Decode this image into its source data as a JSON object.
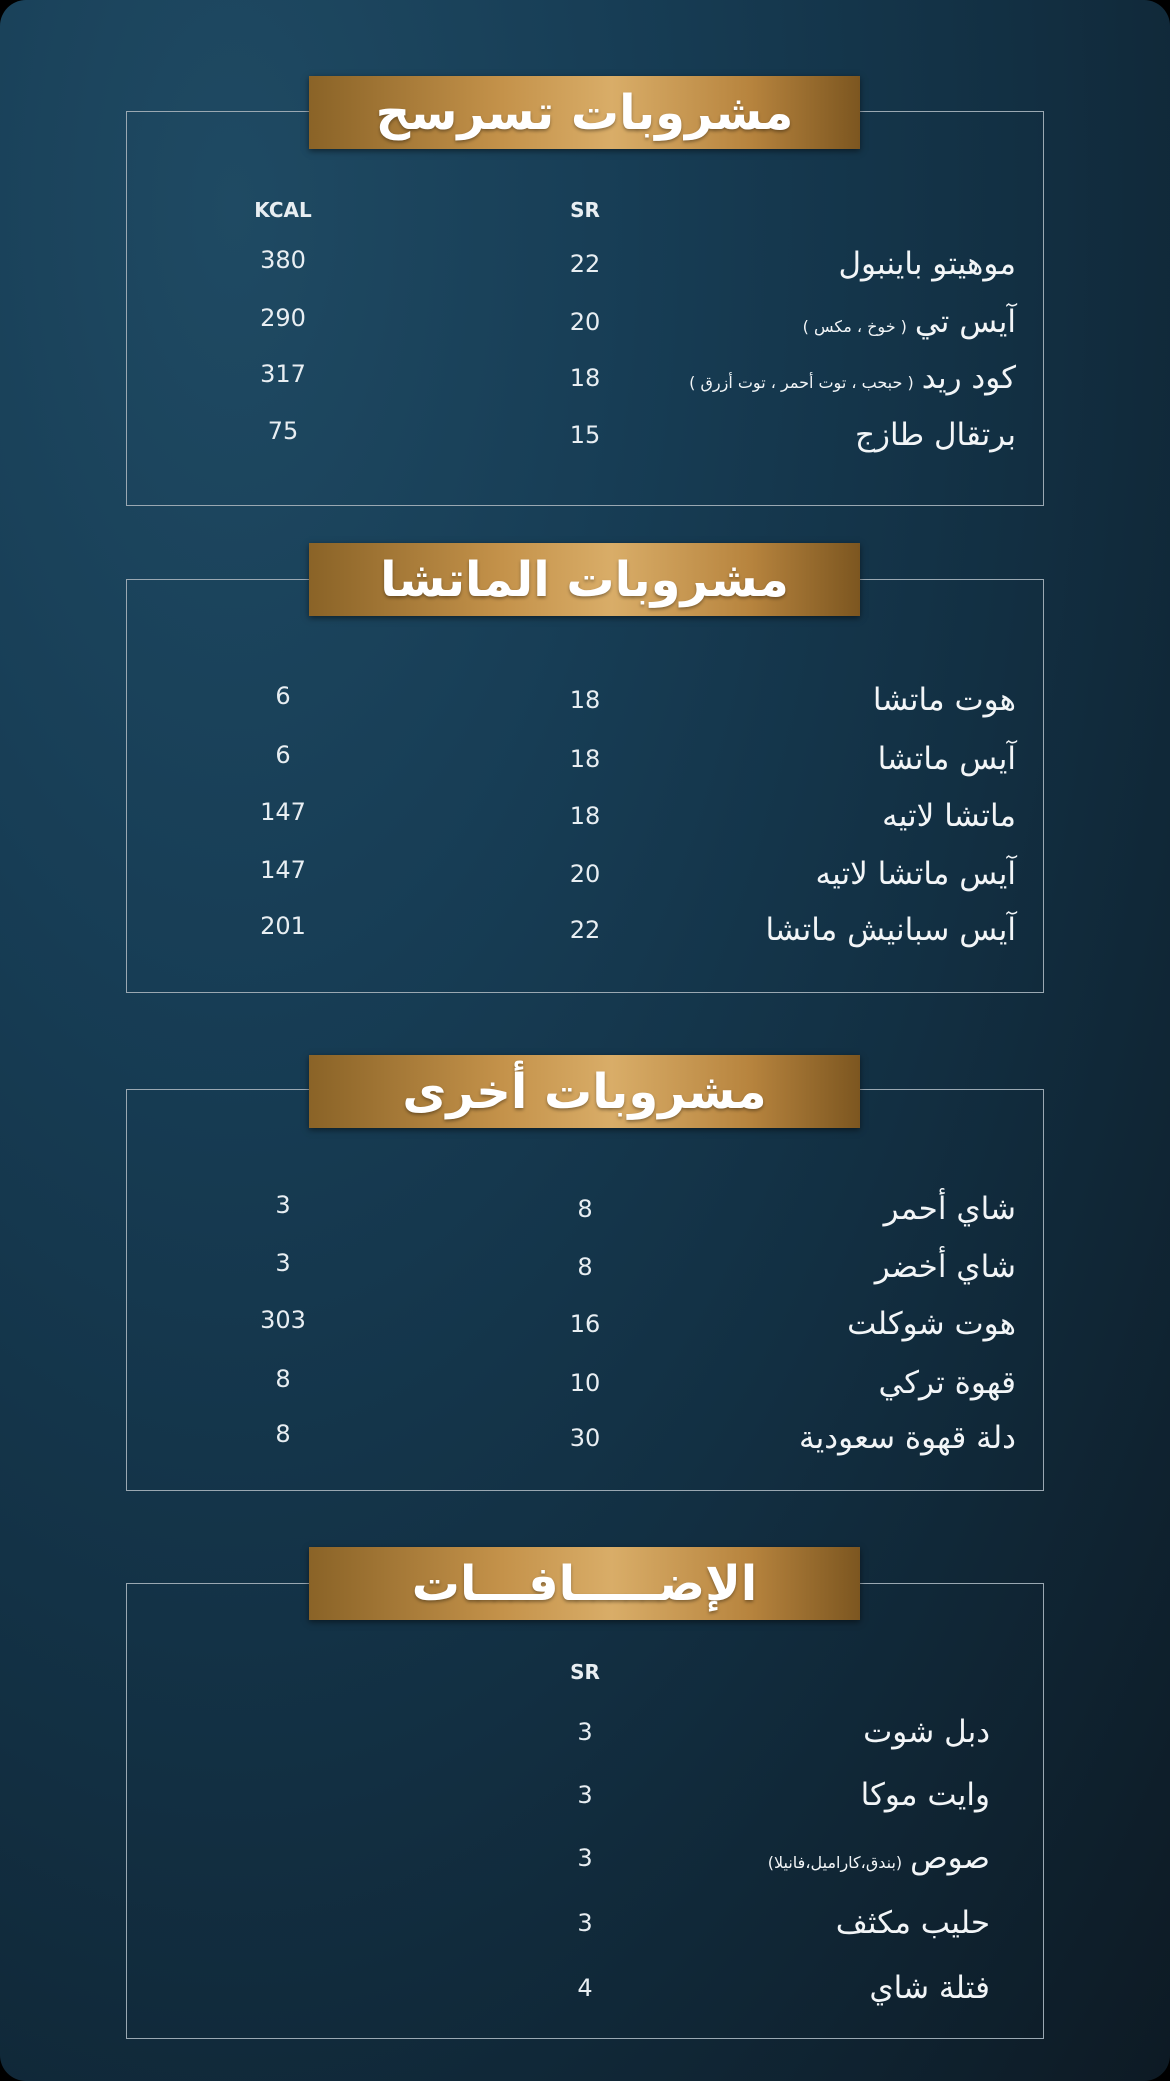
{
  "sections": [
    {
      "title": "مشروبات تسرسح",
      "headers": {
        "sr": "SR",
        "kcal": "KCAL"
      },
      "items": [
        {
          "name": "موهيتو باينبول",
          "note": "",
          "sr": "22",
          "kcal": "380"
        },
        {
          "name": "آيس تي",
          "note": "( خوخ ، مكس )",
          "sr": "20",
          "kcal": "290"
        },
        {
          "name": "كود ريد",
          "note": "( حبحب ، توت أحمر ، توت أزرق )",
          "sr": "18",
          "kcal": "317"
        },
        {
          "name": "برتقال طازج",
          "note": "",
          "sr": "15",
          "kcal": "75"
        }
      ]
    },
    {
      "title": "مشروبات الماتشا",
      "headers": {},
      "items": [
        {
          "name": "هوت ماتشا",
          "note": "",
          "sr": "18",
          "kcal": "6"
        },
        {
          "name": "آيس ماتشا",
          "note": "",
          "sr": "18",
          "kcal": "6"
        },
        {
          "name": "ماتشا لاتيه",
          "note": "",
          "sr": "18",
          "kcal": "147"
        },
        {
          "name": "آيس ماتشا لاتيه",
          "note": "",
          "sr": "20",
          "kcal": "147"
        },
        {
          "name": "آيس سبانيش ماتشا",
          "note": "",
          "sr": "22",
          "kcal": "201"
        }
      ]
    },
    {
      "title": "مشروبات أخرى",
      "headers": {},
      "items": [
        {
          "name": "شاي أحمر",
          "note": "",
          "sr": "8",
          "kcal": "3"
        },
        {
          "name": "شاي أخضر",
          "note": "",
          "sr": "8",
          "kcal": "3"
        },
        {
          "name": "هوت شوكلت",
          "note": "",
          "sr": "16",
          "kcal": "303"
        },
        {
          "name": "قهوة تركي",
          "note": "",
          "sr": "10",
          "kcal": "8"
        },
        {
          "name": "دلة قهوة سعودية",
          "note": "",
          "sr": "30",
          "kcal": "8"
        }
      ]
    },
    {
      "title": "الإضـــــافـــات",
      "headers": {
        "sr": "SR"
      },
      "items": [
        {
          "name": "دبل شوت",
          "note": "",
          "sr": "3"
        },
        {
          "name": "وايت موكا",
          "note": "",
          "sr": "3"
        },
        {
          "name": "صوص",
          "note": "(بندق،كاراميل،فانيلا)",
          "sr": "3"
        },
        {
          "name": "حليب مكثف",
          "note": "",
          "sr": "3"
        },
        {
          "name": "فتلة شاي",
          "note": "",
          "sr": "4"
        }
      ]
    }
  ],
  "colors": {
    "background": "#16384f",
    "banner": "#c4924a",
    "border": "#9aa8b2"
  }
}
